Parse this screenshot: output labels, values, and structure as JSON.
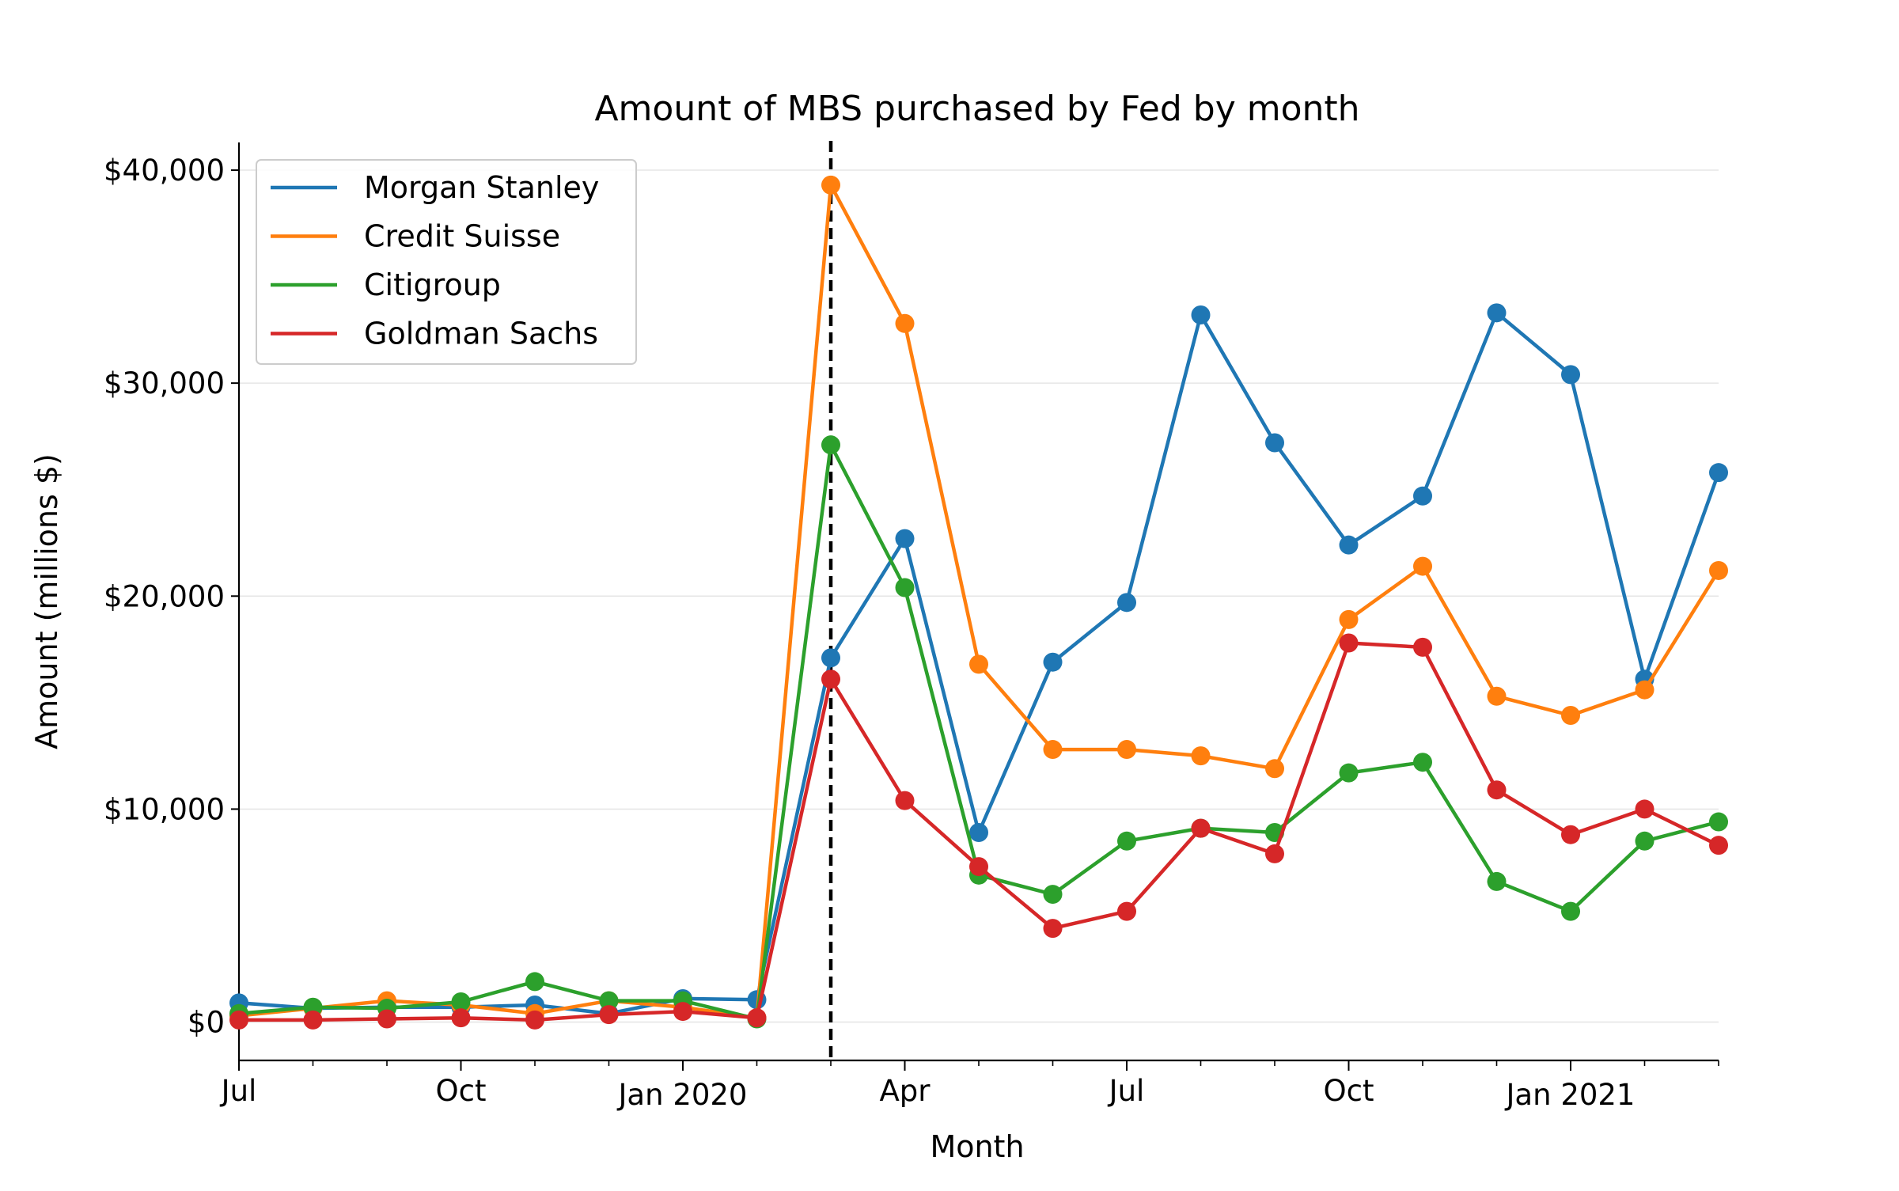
{
  "chart_data": {
    "type": "line",
    "title": "Amount of MBS purchased by Fed by month",
    "xlabel": "Month",
    "ylabel": "Amount (millions $)",
    "x": [
      "2019-07",
      "2019-08",
      "2019-09",
      "2019-10",
      "2019-11",
      "2019-12",
      "2020-01",
      "2020-02",
      "2020-03",
      "2020-04",
      "2020-05",
      "2020-06",
      "2020-07",
      "2020-08",
      "2020-09",
      "2020-10",
      "2020-11",
      "2020-12",
      "2021-01",
      "2021-02",
      "2021-03"
    ],
    "xlim": [
      "2019-07",
      "2021-03"
    ],
    "ylim": [
      -1800,
      41300
    ],
    "x_ticks": [
      {
        "value": "2019-07",
        "label": "Jul"
      },
      {
        "value": "2019-10",
        "label": "Oct"
      },
      {
        "value": "2020-01",
        "label": "Jan 2020"
      },
      {
        "value": "2020-04",
        "label": "Apr"
      },
      {
        "value": "2020-07",
        "label": "Jul"
      },
      {
        "value": "2020-10",
        "label": "Oct"
      },
      {
        "value": "2021-01",
        "label": "Jan 2021"
      }
    ],
    "y_ticks": [
      {
        "value": 0,
        "label": "$0"
      },
      {
        "value": 10000,
        "label": "$10,000"
      },
      {
        "value": 20000,
        "label": "$20,000"
      },
      {
        "value": 30000,
        "label": "$30,000"
      },
      {
        "value": 40000,
        "label": "$40,000"
      }
    ],
    "grid": "horizontal",
    "legend_position": "top-left",
    "reference_line": {
      "x": "2020-03",
      "style": "dashed",
      "color": "#000000"
    },
    "series": [
      {
        "name": "Morgan Stanley",
        "color": "#1f77b4",
        "values": [
          900,
          650,
          700,
          700,
          800,
          400,
          1100,
          1050,
          17100,
          22700,
          8900,
          16900,
          19700,
          33200,
          27200,
          22400,
          24700,
          33300,
          30400,
          16100,
          25800
        ]
      },
      {
        "name": "Credit Suisse",
        "color": "#ff7f0e",
        "values": [
          300,
          650,
          1000,
          800,
          400,
          1000,
          700,
          200,
          39300,
          32800,
          16800,
          12800,
          12800,
          12500,
          11900,
          18900,
          21400,
          15300,
          14400,
          15600,
          21200
        ]
      },
      {
        "name": "Citigroup",
        "color": "#2ca02c",
        "values": [
          400,
          700,
          650,
          950,
          1900,
          1000,
          1000,
          150,
          27100,
          20400,
          6900,
          6000,
          8500,
          9100,
          8900,
          11700,
          12200,
          6600,
          5200,
          8500,
          9400
        ]
      },
      {
        "name": "Goldman Sachs",
        "color": "#d62728",
        "values": [
          100,
          100,
          150,
          200,
          100,
          350,
          500,
          200,
          16100,
          10400,
          7300,
          4400,
          5200,
          9100,
          7900,
          17800,
          17600,
          10900,
          8800,
          10000,
          8300
        ]
      }
    ]
  }
}
